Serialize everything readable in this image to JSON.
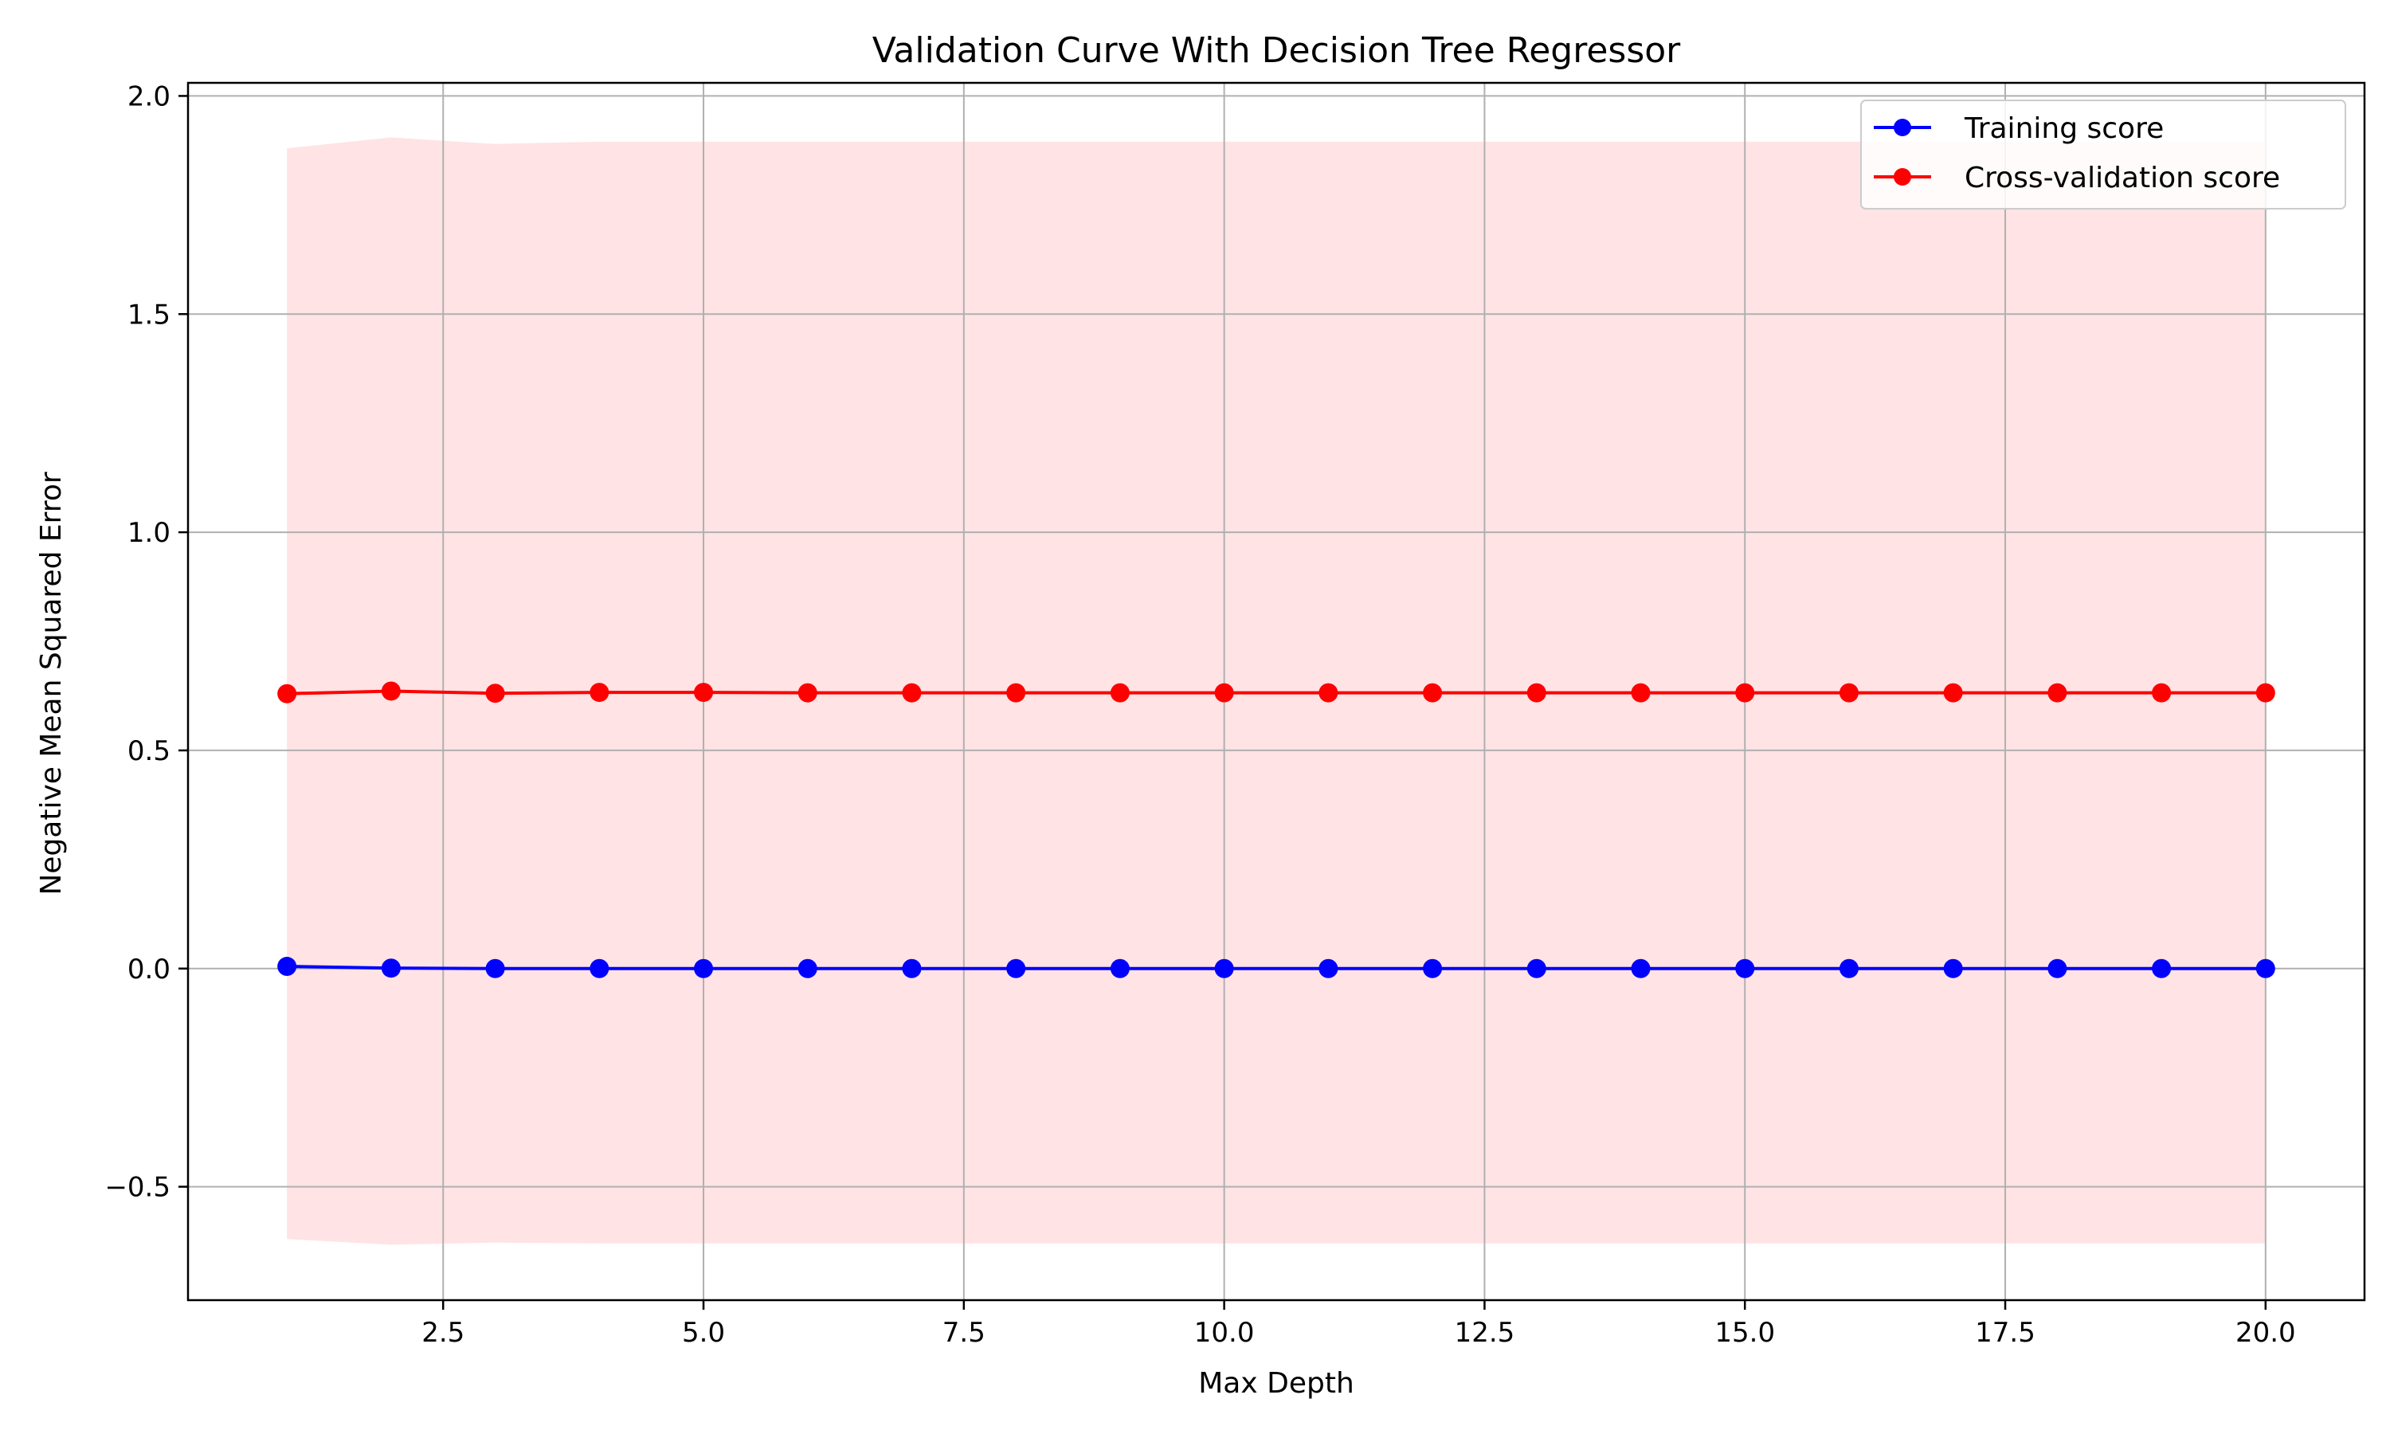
{
  "chart_data": {
    "type": "line",
    "title": "Validation Curve With Decision Tree Regressor",
    "xlabel": "Max Depth",
    "ylabel": "Negative Mean Squared Error",
    "xlim": [
      0.05,
      20.95
    ],
    "ylim": [
      -0.76,
      2.03
    ],
    "xticks": [
      2.5,
      5.0,
      7.5,
      10.0,
      12.5,
      15.0,
      17.5,
      20.0
    ],
    "xtick_labels": [
      "2.5",
      "5.0",
      "7.5",
      "10.0",
      "12.5",
      "15.0",
      "17.5",
      "20.0"
    ],
    "yticks": [
      -0.5,
      0.0,
      0.5,
      1.0,
      1.5,
      2.0
    ],
    "ytick_labels": [
      "−0.5",
      "0.0",
      "0.5",
      "1.0",
      "1.5",
      "2.0"
    ],
    "grid": true,
    "legend_position": "top-right",
    "x": [
      1,
      2,
      3,
      4,
      5,
      6,
      7,
      8,
      9,
      10,
      11,
      12,
      13,
      14,
      15,
      16,
      17,
      18,
      19,
      20
    ],
    "series": [
      {
        "name": "Training score",
        "color": "#0000ff",
        "values": [
          0.005,
          0.001,
          0.0,
          0.0,
          0.0,
          0.0,
          0.0,
          0.0,
          0.0,
          0.0,
          0.0,
          0.0,
          0.0,
          0.0,
          0.0,
          0.0,
          0.0,
          0.0,
          0.0,
          0.0
        ]
      },
      {
        "name": "Cross-validation score",
        "color": "#ff0000",
        "values": [
          0.63,
          0.636,
          0.631,
          0.633,
          0.633,
          0.632,
          0.632,
          0.632,
          0.632,
          0.632,
          0.632,
          0.632,
          0.632,
          0.632,
          0.632,
          0.632,
          0.632,
          0.632,
          0.632,
          0.632
        ],
        "band_color": "#ffc0c5",
        "band_upper": [
          1.88,
          1.905,
          1.89,
          1.895,
          1.895,
          1.895,
          1.895,
          1.895,
          1.895,
          1.895,
          1.895,
          1.895,
          1.895,
          1.895,
          1.895,
          1.895,
          1.895,
          1.895,
          1.895,
          1.895
        ],
        "band_lower": [
          -0.62,
          -0.633,
          -0.628,
          -0.63,
          -0.63,
          -0.63,
          -0.63,
          -0.63,
          -0.63,
          -0.63,
          -0.63,
          -0.63,
          -0.63,
          -0.63,
          -0.63,
          -0.63,
          -0.63,
          -0.63,
          -0.63,
          -0.63
        ]
      }
    ]
  }
}
